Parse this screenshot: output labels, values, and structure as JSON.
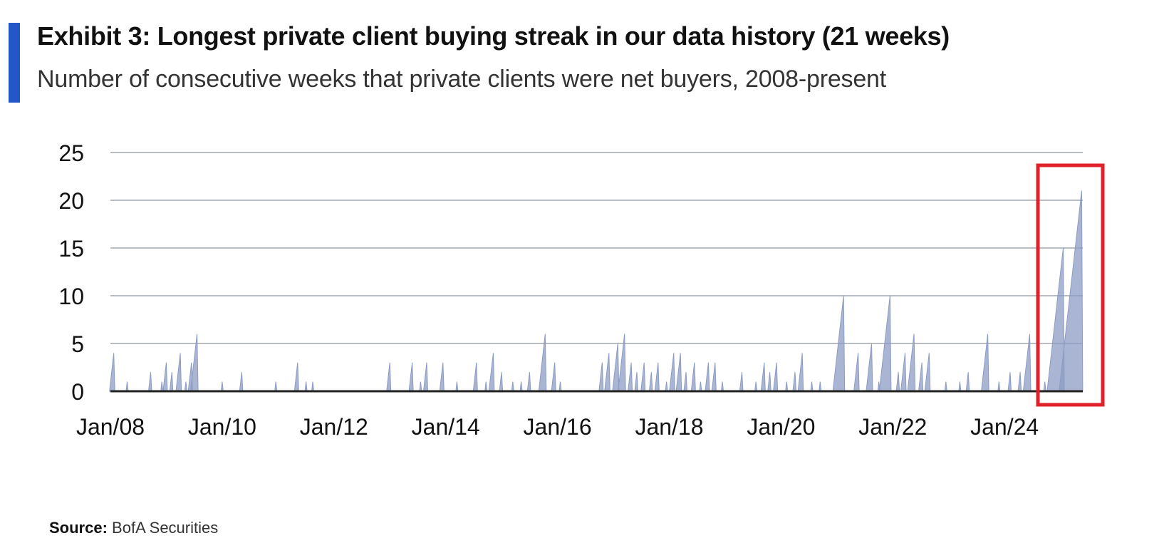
{
  "header": {
    "title": "Exhibit 3: Longest private client buying streak in our data history (21 weeks)",
    "subtitle": "Number of consecutive weeks that private clients were net buyers, 2008-present"
  },
  "footer": {
    "source_label": "Source:",
    "source_text": "BofA Securities"
  },
  "colors": {
    "accent": "#2356c7",
    "series": "#8c9cc4",
    "gridline": "#b8bcc4",
    "highlight": "#e0202a"
  },
  "chart_data": {
    "type": "area",
    "title": "Exhibit 3: Longest private client buying streak in our data history (21 weeks)",
    "subtitle": "Number of consecutive weeks that private clients were net buyers, 2008-present",
    "xlabel": "",
    "ylabel": "",
    "ylim": [
      0,
      25
    ],
    "yticks": [
      "0",
      "5",
      "10",
      "15",
      "20",
      "25"
    ],
    "xticks": [
      "Jan/08",
      "Jan/10",
      "Jan/12",
      "Jan/14",
      "Jan/16",
      "Jan/18",
      "Jan/20",
      "Jan/22",
      "Jan/24"
    ],
    "x_range_years": [
      2008.0,
      2025.4
    ],
    "grid": true,
    "highlight": {
      "label": "21-week streak",
      "x_start": 2024.75,
      "x_end": 2025.4,
      "peak": 21
    },
    "series": [
      {
        "name": "Consecutive weeks of net buying",
        "streaks": [
          {
            "end": 2008.06,
            "value": 4
          },
          {
            "end": 2008.3,
            "value": 1
          },
          {
            "end": 2008.72,
            "value": 2
          },
          {
            "end": 2008.92,
            "value": 1
          },
          {
            "end": 2009.0,
            "value": 3
          },
          {
            "end": 2009.1,
            "value": 2
          },
          {
            "end": 2009.25,
            "value": 4
          },
          {
            "end": 2009.35,
            "value": 1
          },
          {
            "end": 2009.45,
            "value": 3
          },
          {
            "end": 2009.55,
            "value": 6
          },
          {
            "end": 2010.0,
            "value": 1
          },
          {
            "end": 2010.35,
            "value": 2
          },
          {
            "end": 2010.96,
            "value": 1
          },
          {
            "end": 2011.35,
            "value": 3
          },
          {
            "end": 2011.5,
            "value": 1
          },
          {
            "end": 2011.62,
            "value": 1
          },
          {
            "end": 2013.0,
            "value": 3
          },
          {
            "end": 2013.4,
            "value": 3
          },
          {
            "end": 2013.55,
            "value": 1
          },
          {
            "end": 2013.66,
            "value": 3
          },
          {
            "end": 2013.95,
            "value": 3
          },
          {
            "end": 2014.2,
            "value": 1
          },
          {
            "end": 2014.55,
            "value": 3
          },
          {
            "end": 2014.72,
            "value": 1
          },
          {
            "end": 2014.85,
            "value": 4
          },
          {
            "end": 2015.0,
            "value": 2
          },
          {
            "end": 2015.2,
            "value": 1
          },
          {
            "end": 2015.35,
            "value": 1
          },
          {
            "end": 2015.5,
            "value": 2
          },
          {
            "end": 2015.78,
            "value": 6
          },
          {
            "end": 2015.95,
            "value": 3
          },
          {
            "end": 2016.05,
            "value": 1
          },
          {
            "end": 2016.8,
            "value": 3
          },
          {
            "end": 2016.92,
            "value": 4
          },
          {
            "end": 2017.08,
            "value": 5
          },
          {
            "end": 2017.2,
            "value": 6
          },
          {
            "end": 2017.32,
            "value": 3
          },
          {
            "end": 2017.42,
            "value": 2
          },
          {
            "end": 2017.55,
            "value": 3
          },
          {
            "end": 2017.68,
            "value": 2
          },
          {
            "end": 2017.8,
            "value": 3
          },
          {
            "end": 2017.95,
            "value": 1
          },
          {
            "end": 2018.08,
            "value": 4
          },
          {
            "end": 2018.2,
            "value": 4
          },
          {
            "end": 2018.3,
            "value": 2
          },
          {
            "end": 2018.45,
            "value": 3
          },
          {
            "end": 2018.56,
            "value": 1
          },
          {
            "end": 2018.7,
            "value": 3
          },
          {
            "end": 2018.82,
            "value": 3
          },
          {
            "end": 2018.95,
            "value": 1
          },
          {
            "end": 2019.3,
            "value": 2
          },
          {
            "end": 2019.55,
            "value": 1
          },
          {
            "end": 2019.7,
            "value": 3
          },
          {
            "end": 2019.8,
            "value": 2
          },
          {
            "end": 2019.92,
            "value": 3
          },
          {
            "end": 2020.1,
            "value": 1
          },
          {
            "end": 2020.25,
            "value": 2
          },
          {
            "end": 2020.38,
            "value": 4
          },
          {
            "end": 2020.55,
            "value": 1
          },
          {
            "end": 2020.7,
            "value": 1
          },
          {
            "end": 2021.12,
            "value": 10
          },
          {
            "end": 2021.38,
            "value": 4
          },
          {
            "end": 2021.62,
            "value": 5
          },
          {
            "end": 2021.75,
            "value": 1
          },
          {
            "end": 2021.95,
            "value": 10
          },
          {
            "end": 2022.1,
            "value": 2
          },
          {
            "end": 2022.22,
            "value": 4
          },
          {
            "end": 2022.38,
            "value": 6
          },
          {
            "end": 2022.52,
            "value": 3
          },
          {
            "end": 2022.65,
            "value": 4
          },
          {
            "end": 2022.95,
            "value": 1
          },
          {
            "end": 2023.2,
            "value": 1
          },
          {
            "end": 2023.35,
            "value": 2
          },
          {
            "end": 2023.7,
            "value": 6
          },
          {
            "end": 2023.9,
            "value": 1
          },
          {
            "end": 2024.1,
            "value": 2
          },
          {
            "end": 2024.28,
            "value": 2
          },
          {
            "end": 2024.45,
            "value": 6
          },
          {
            "end": 2024.6,
            "value": 1
          },
          {
            "end": 2024.72,
            "value": 1
          },
          {
            "end": 2025.05,
            "value": 15
          },
          {
            "end": 2025.38,
            "value": 21
          }
        ]
      }
    ]
  }
}
